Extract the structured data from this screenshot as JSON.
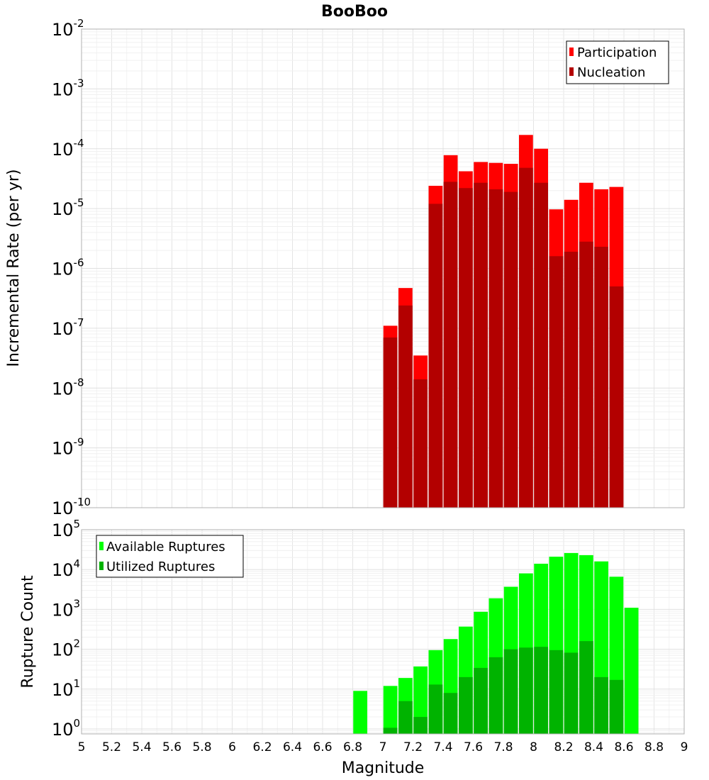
{
  "chart_data": [
    {
      "type": "bar",
      "title": "BooBoo",
      "xlabel": "",
      "ylabel": "Incremental Rate (per yr)",
      "yscale": "log",
      "xlim": [
        5,
        9
      ],
      "ylim": [
        1e-10,
        0.01
      ],
      "grid": true,
      "legend_position": "top-right",
      "y_ticks": [
        {
          "base": "10",
          "exp": "-2",
          "value": 0.01
        },
        {
          "base": "10",
          "exp": "-3",
          "value": 0.001
        },
        {
          "base": "10",
          "exp": "-4",
          "value": 0.0001
        },
        {
          "base": "10",
          "exp": "-5",
          "value": 1e-05
        },
        {
          "base": "10",
          "exp": "-6",
          "value": 1e-06
        },
        {
          "base": "10",
          "exp": "-7",
          "value": 1e-07
        },
        {
          "base": "10",
          "exp": "-8",
          "value": 1e-08
        },
        {
          "base": "10",
          "exp": "-9",
          "value": 1e-09
        },
        {
          "base": "10",
          "exp": "-10",
          "value": 1e-10
        }
      ],
      "x": [
        7.05,
        7.15,
        7.25,
        7.35,
        7.45,
        7.55,
        7.65,
        7.75,
        7.85,
        7.95,
        8.05,
        8.15,
        8.25,
        8.35,
        8.45,
        8.55
      ],
      "series": [
        {
          "name": "Participation",
          "color": "#ff0000",
          "values": [
            1.1e-07,
            4.7e-07,
            3.5e-08,
            2.4e-05,
            7.8e-05,
            4.2e-05,
            6e-05,
            5.8e-05,
            5.6e-05,
            0.00017,
            0.0001,
            9.7e-06,
            1.4e-05,
            2.7e-05,
            2.1e-05,
            2.3e-05
          ]
        },
        {
          "name": "Nucleation",
          "color": "#b30000",
          "values": [
            7e-08,
            2.4e-07,
            1.4e-08,
            1.2e-05,
            2.8e-05,
            2.2e-05,
            2.7e-05,
            2.1e-05,
            1.9e-05,
            4.8e-05,
            2.7e-05,
            1.6e-06,
            1.9e-06,
            2.8e-06,
            2.3e-06,
            5e-07
          ]
        }
      ]
    },
    {
      "type": "bar",
      "title": "",
      "xlabel": "Magnitude",
      "ylabel": "Rupture Count",
      "yscale": "log",
      "xlim": [
        5,
        9
      ],
      "ylim": [
        0.75,
        100000
      ],
      "grid": true,
      "legend_position": "top-left",
      "y_ticks": [
        {
          "base": "10",
          "exp": "5",
          "value": 100000
        },
        {
          "base": "10",
          "exp": "4",
          "value": 10000
        },
        {
          "base": "10",
          "exp": "3",
          "value": 1000
        },
        {
          "base": "10",
          "exp": "2",
          "value": 100
        },
        {
          "base": "10",
          "exp": "1",
          "value": 10
        },
        {
          "base": "10",
          "exp": "0",
          "value": 1
        }
      ],
      "x_ticks": [
        "5",
        "5.2",
        "5.4",
        "5.6",
        "5.8",
        "6",
        "6.2",
        "6.4",
        "6.6",
        "6.8",
        "7",
        "7.2",
        "7.4",
        "7.6",
        "7.8",
        "8",
        "8.2",
        "8.4",
        "8.6",
        "8.8",
        "9"
      ],
      "x": [
        6.85,
        7.05,
        7.15,
        7.25,
        7.35,
        7.45,
        7.55,
        7.65,
        7.75,
        7.85,
        7.95,
        8.05,
        8.15,
        8.25,
        8.35,
        8.45,
        8.55,
        8.65
      ],
      "series": [
        {
          "name": "Available Ruptures",
          "color": "#00ff00",
          "values": [
            9,
            12,
            19,
            37,
            95,
            180,
            370,
            870,
            1900,
            3700,
            8000,
            14000,
            21000,
            26000,
            23000,
            16000,
            6600,
            1100
          ]
        },
        {
          "name": "Utilized Ruptures",
          "color": "#00b300",
          "values": [
            null,
            1.07,
            5,
            2,
            13,
            8,
            20,
            34,
            63,
            100,
            110,
            115,
            95,
            82,
            160,
            20,
            17,
            null
          ]
        }
      ]
    }
  ]
}
